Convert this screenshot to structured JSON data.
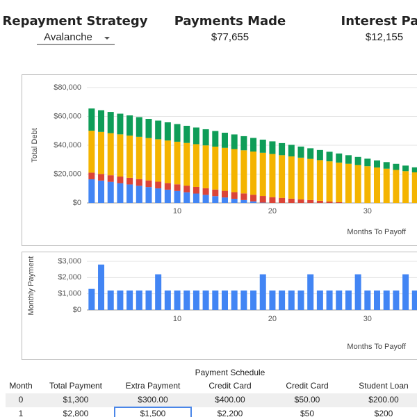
{
  "header": [
    {
      "title": "Repayment Strategy",
      "value": "Avalanche"
    },
    {
      "title": "Payments Made",
      "value": "$77,655"
    },
    {
      "title": "Interest Paid",
      "value": "$12,155"
    }
  ],
  "chart_data": [
    {
      "type": "bar",
      "stacked": true,
      "y_label": "Total Debt",
      "x_label": "Months To Payoff",
      "x": [
        1,
        2,
        3,
        4,
        5,
        6,
        7,
        8,
        9,
        10,
        11,
        12,
        13,
        14,
        15,
        16,
        17,
        18,
        19,
        20,
        21,
        22,
        23,
        24,
        25,
        26,
        27,
        28,
        29,
        30,
        31,
        32,
        33,
        34,
        35
      ],
      "series": [
        {
          "color": "#4285f4",
          "values": [
            16400,
            15500,
            14600,
            13700,
            12800,
            11900,
            11000,
            10100,
            9200,
            8300,
            7400,
            6500,
            5600,
            4700,
            3800,
            2900,
            2000,
            1100,
            200,
            0,
            0,
            0,
            0,
            0,
            0,
            0,
            0,
            0,
            0,
            0,
            0,
            0,
            0,
            0,
            0
          ]
        },
        {
          "color": "#db4437",
          "values": [
            4600,
            4600,
            4600,
            4600,
            4600,
            4600,
            4600,
            4600,
            4600,
            4600,
            4600,
            4600,
            4600,
            4600,
            4600,
            4600,
            4600,
            4600,
            4600,
            4000,
            3500,
            3000,
            2500,
            2000,
            1500,
            1000,
            500,
            0,
            0,
            0,
            0,
            0,
            0,
            0,
            0
          ]
        },
        {
          "color": "#f4b400",
          "values": [
            29100,
            29150,
            29200,
            29250,
            29300,
            29350,
            29400,
            29450,
            29500,
            29550,
            29600,
            29650,
            29700,
            29750,
            29800,
            29850,
            29900,
            29950,
            30000,
            29950,
            29600,
            29250,
            28900,
            28550,
            28200,
            27850,
            27500,
            27150,
            26300,
            25450,
            24600,
            23750,
            22900,
            22050,
            21200
          ]
        },
        {
          "color": "#0f9d58",
          "values": [
            15400,
            15050,
            14700,
            14350,
            14000,
            13650,
            13300,
            12950,
            12600,
            12250,
            11900,
            11550,
            11200,
            10850,
            10500,
            10150,
            9800,
            9450,
            9100,
            8750,
            8400,
            8050,
            7700,
            7350,
            7000,
            6650,
            6300,
            5950,
            5600,
            5250,
            4900,
            4550,
            4200,
            3850,
            3500
          ]
        }
      ],
      "xlim": [
        0.5,
        35.2
      ],
      "xticks": [
        10,
        20,
        30
      ],
      "ylim": [
        0,
        80000
      ],
      "yticks": [
        {
          "value": 0,
          "label": "$0"
        },
        {
          "value": 20000,
          "label": "$20,000"
        },
        {
          "value": 40000,
          "label": "$40,000"
        },
        {
          "value": 60000,
          "label": "$60,000"
        },
        {
          "value": 80000,
          "label": "$80,000"
        }
      ],
      "grid": true
    },
    {
      "type": "bar",
      "stacked": false,
      "y_label": "Monthly Payment",
      "x_label": "Months To Payoff",
      "x": [
        1,
        2,
        3,
        4,
        5,
        6,
        7,
        8,
        9,
        10,
        11,
        12,
        13,
        14,
        15,
        16,
        17,
        18,
        19,
        20,
        21,
        22,
        23,
        24,
        25,
        26,
        27,
        28,
        29,
        30,
        31,
        32,
        33,
        34,
        35
      ],
      "series": [
        {
          "color": "#4285f4",
          "values": [
            1300,
            2800,
            1200,
            1200,
            1200,
            1200,
            1200,
            2200,
            1200,
            1200,
            1200,
            1200,
            1200,
            1200,
            1200,
            1200,
            1200,
            1200,
            2200,
            1200,
            1200,
            1200,
            1200,
            2200,
            1200,
            1200,
            1200,
            1200,
            2200,
            1200,
            1200,
            1200,
            1200,
            2200,
            1200
          ]
        }
      ],
      "xlim": [
        0.5,
        35.2
      ],
      "xticks": [
        10,
        20,
        30
      ],
      "ylim": [
        0,
        3000
      ],
      "yticks": [
        {
          "value": 0,
          "label": "$0"
        },
        {
          "value": 1000,
          "label": "$1,000"
        },
        {
          "value": 2000,
          "label": "$2,000"
        },
        {
          "value": 3000,
          "label": "$3,000"
        }
      ],
      "grid": true
    }
  ],
  "table": {
    "title": "Payment Schedule",
    "columns": [
      "Month",
      "Total Payment",
      "Extra Payment",
      "Credit Card",
      "Credit Card",
      "Student Loan"
    ],
    "rows": [
      [
        "0",
        "$1,300",
        "$300.00",
        "$400.00",
        "$50.00",
        "$200.00"
      ],
      [
        "1",
        "$2,800",
        "$1,500",
        "$2,200",
        "$50",
        "$200"
      ]
    ]
  }
}
